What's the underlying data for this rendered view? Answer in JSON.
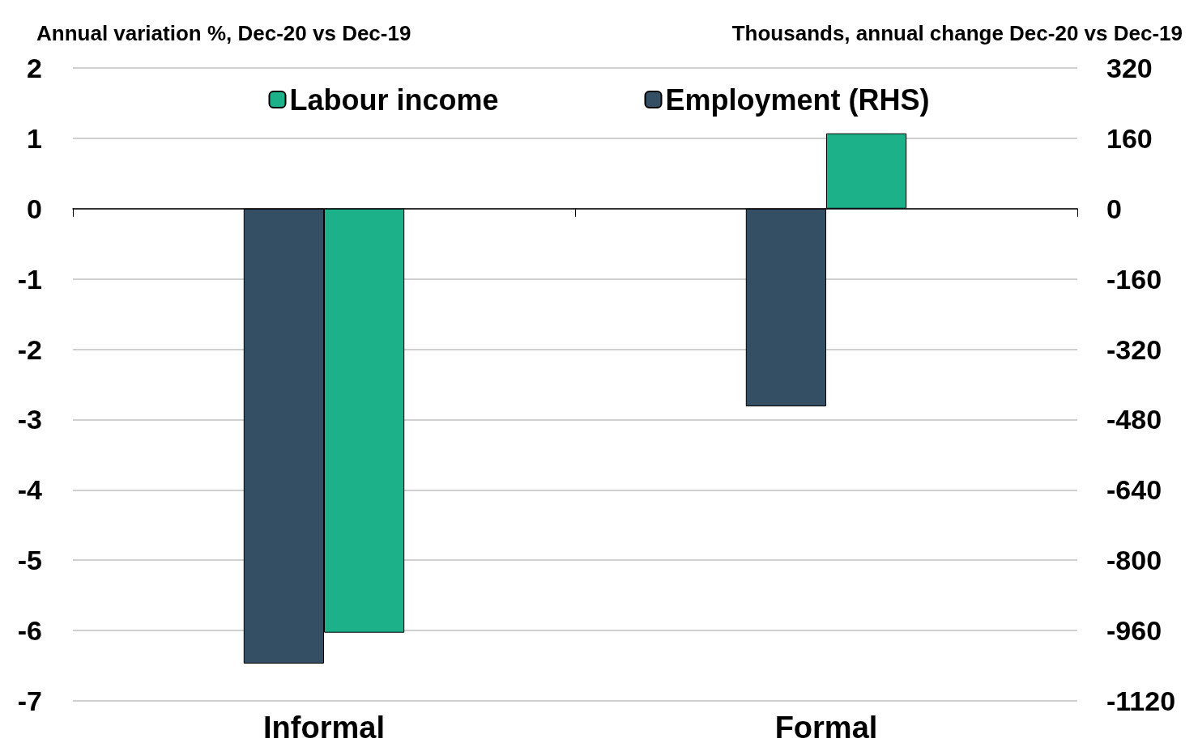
{
  "chart_data": {
    "type": "bar",
    "ylabel": "Annual variation %, Dec-20 vs Dec-19",
    "y2label": "Thousands, annual change Dec-20 vs Dec-19",
    "categories": [
      "Informal",
      "Formal"
    ],
    "series": [
      {
        "name": "Labour income",
        "color": "#1db18a",
        "values": [
          -6.03,
          1.07
        ]
      },
      {
        "name": "Employment (RHS)",
        "color": "#344e63",
        "axis": "y2",
        "values": [
          -1035,
          -450
        ]
      }
    ],
    "ylim": [
      -7,
      2
    ],
    "yticks": [
      -7,
      -6,
      -5,
      -4,
      -3,
      -2,
      -1,
      0,
      1,
      2
    ],
    "y2lim": [
      -1120,
      320
    ],
    "y2ticks": [
      -1120,
      -960,
      -800,
      -640,
      -480,
      -320,
      -160,
      0,
      160,
      320
    ],
    "grid": "y",
    "legend": "top"
  }
}
